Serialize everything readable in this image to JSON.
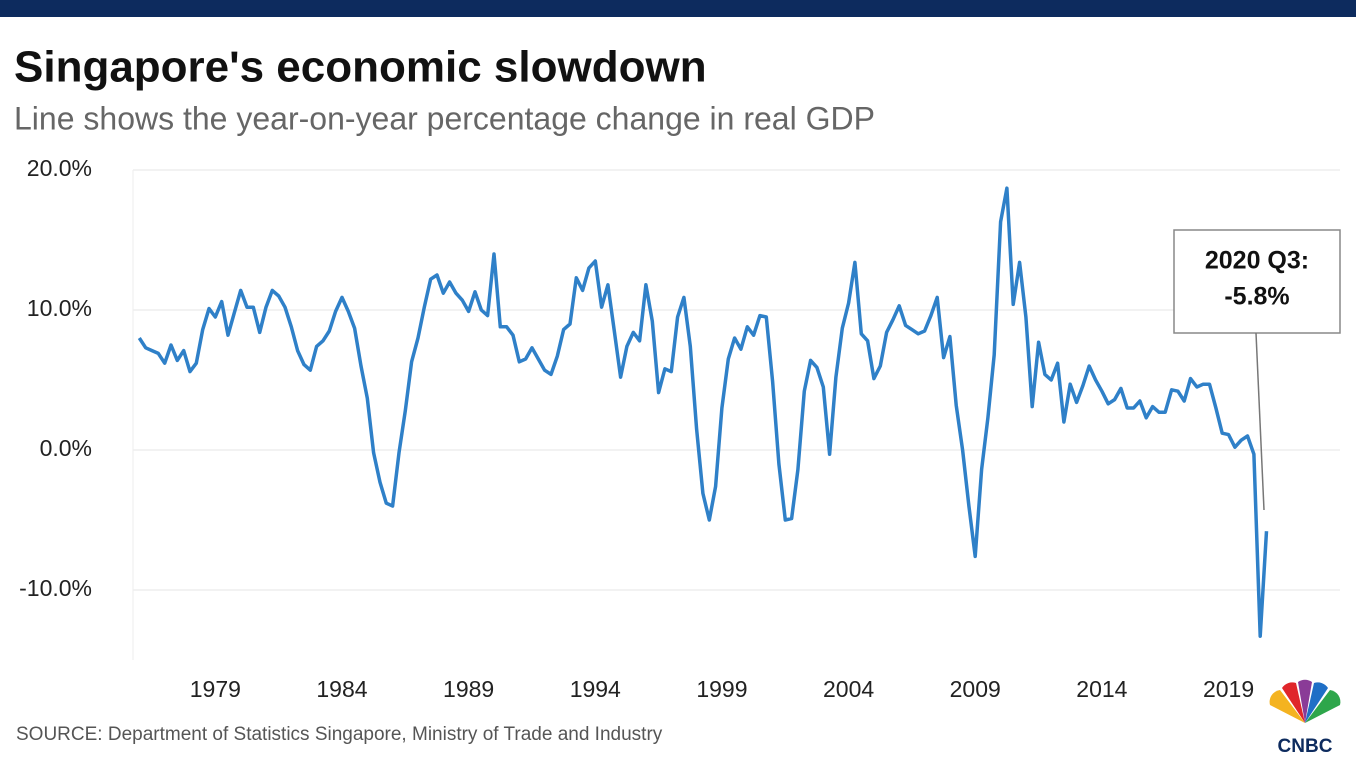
{
  "chart_data": {
    "type": "line",
    "title": "Singapore's economic slowdown",
    "subtitle": "Line shows the year-on-year percentage change in real GDP",
    "source": "SOURCE: Department of Statistics Singapore, Ministry of Trade and Industry",
    "logo_text": "CNBC",
    "annotation": [
      "2020 Q3:",
      "-5.8%"
    ],
    "x": [
      1976.0,
      1976.25,
      1976.5,
      1976.75,
      1977.0,
      1977.25,
      1977.5,
      1977.75,
      1978.0,
      1978.25,
      1978.5,
      1978.75,
      1979.0,
      1979.25,
      1979.5,
      1979.75,
      1980.0,
      1980.25,
      1980.5,
      1980.75,
      1981.0,
      1981.25,
      1981.5,
      1981.75,
      1982.0,
      1982.25,
      1982.5,
      1982.75,
      1983.0,
      1983.25,
      1983.5,
      1983.75,
      1984.0,
      1984.25,
      1984.5,
      1984.75,
      1985.0,
      1985.25,
      1985.5,
      1985.75,
      1986.0,
      1986.25,
      1986.5,
      1986.75,
      1987.0,
      1987.25,
      1987.5,
      1987.75,
      1988.0,
      1988.25,
      1988.5,
      1988.75,
      1989.0,
      1989.25,
      1989.5,
      1989.75,
      1990.0,
      1990.25,
      1990.5,
      1990.75,
      1991.0,
      1991.25,
      1991.5,
      1991.75,
      1992.0,
      1992.25,
      1992.5,
      1992.75,
      1993.0,
      1993.25,
      1993.5,
      1993.75,
      1994.0,
      1994.25,
      1994.5,
      1994.75,
      1995.0,
      1995.25,
      1995.5,
      1995.75,
      1996.0,
      1996.25,
      1996.5,
      1996.75,
      1997.0,
      1997.25,
      1997.5,
      1997.75,
      1998.0,
      1998.25,
      1998.5,
      1998.75,
      1999.0,
      1999.25,
      1999.5,
      1999.75,
      2000.0,
      2000.25,
      2000.5,
      2000.75,
      2001.0,
      2001.25,
      2001.5,
      2001.75,
      2002.0,
      2002.25,
      2002.5,
      2002.75,
      2003.0,
      2003.25,
      2003.5,
      2003.75,
      2004.0,
      2004.25,
      2004.5,
      2004.75,
      2005.0,
      2005.25,
      2005.5,
      2005.75,
      2006.0,
      2006.25,
      2006.5,
      2006.75,
      2007.0,
      2007.25,
      2007.5,
      2007.75,
      2008.0,
      2008.25,
      2008.5,
      2008.75,
      2009.0,
      2009.25,
      2009.5,
      2009.75,
      2010.0,
      2010.25,
      2010.5,
      2010.75,
      2011.0,
      2011.25,
      2011.5,
      2011.75,
      2012.0,
      2012.25,
      2012.5,
      2012.75,
      2013.0,
      2013.25,
      2013.5,
      2013.75,
      2014.0,
      2014.25,
      2014.5,
      2014.75,
      2015.0,
      2015.25,
      2015.5,
      2015.75,
      2016.0,
      2016.25,
      2016.5,
      2016.75,
      2017.0,
      2017.25,
      2017.5,
      2017.75,
      2018.0,
      2018.25,
      2018.5,
      2018.75,
      2019.0,
      2019.25,
      2019.5,
      2019.75,
      2020.0,
      2020.25,
      2020.5
    ],
    "series": [
      {
        "name": "Real GDP YoY change",
        "color": "#2f80c8",
        "values": [
          8.0,
          7.3,
          7.1,
          6.9,
          6.2,
          7.5,
          6.4,
          7.1,
          5.6,
          6.2,
          8.6,
          10.1,
          9.5,
          10.6,
          8.2,
          9.8,
          11.4,
          10.2,
          10.2,
          8.4,
          10.2,
          11.4,
          11.0,
          10.2,
          8.8,
          7.1,
          6.1,
          5.7,
          7.4,
          7.8,
          8.5,
          9.9,
          10.9,
          9.9,
          8.7,
          6.0,
          3.7,
          -0.2,
          -2.3,
          -3.8,
          -4.0,
          -0.2,
          2.8,
          6.3,
          8.0,
          10.2,
          12.2,
          12.5,
          11.2,
          12.0,
          11.2,
          10.7,
          9.9,
          11.3,
          10.0,
          9.6,
          14.0,
          8.8,
          8.8,
          8.2,
          6.3,
          6.5,
          7.3,
          6.5,
          5.7,
          5.4,
          6.7,
          8.6,
          9.0,
          12.3,
          11.4,
          13.0,
          13.5,
          10.2,
          11.8,
          8.5,
          5.2,
          7.4,
          8.4,
          7.8,
          11.8,
          9.2,
          4.1,
          5.8,
          5.6,
          9.5,
          10.9,
          7.4,
          1.5,
          -3.1,
          -5.0,
          -2.6,
          3.0,
          6.5,
          8.0,
          7.2,
          8.8,
          8.2,
          9.6,
          9.5,
          4.9,
          -1.0,
          -5.0,
          -4.9,
          -1.4,
          4.2,
          6.4,
          5.9,
          4.5,
          -0.3,
          5.2,
          8.7,
          10.5,
          13.4,
          8.3,
          7.8,
          5.1,
          6.0,
          8.4,
          9.3,
          10.3,
          8.9,
          8.6,
          8.3,
          8.5,
          9.6,
          10.9,
          6.6,
          8.1,
          3.2,
          0.0,
          -4.0,
          -7.6,
          -1.4,
          2.3,
          6.8,
          16.3,
          18.7,
          10.4,
          13.4,
          9.5,
          3.1,
          7.7,
          5.4,
          5.0,
          6.2,
          2.0,
          4.7,
          3.4,
          4.6,
          6.0,
          5.0,
          4.2,
          3.3,
          3.6,
          4.4,
          3.0,
          3.0,
          3.5,
          2.3,
          3.1,
          2.7,
          2.7,
          4.3,
          4.2,
          3.5,
          5.1,
          4.5,
          4.7,
          4.7,
          3.0,
          1.2,
          1.1,
          0.2,
          0.7,
          1.0,
          -0.3,
          -13.3,
          -5.8
        ]
      }
    ],
    "xlim": [
      1975.75,
      2023.4
    ],
    "xticks": [
      1979,
      1984,
      1989,
      1994,
      1999,
      2004,
      2009,
      2014,
      2019
    ],
    "ylim": [
      -15,
      20
    ],
    "yticks": [
      {
        "value": -10,
        "label": "-10.0%"
      },
      {
        "value": 0,
        "label": "0.0%"
      },
      {
        "value": 10,
        "label": "10.0%"
      },
      {
        "value": 20,
        "label": "20.0%"
      }
    ],
    "grid": true
  }
}
